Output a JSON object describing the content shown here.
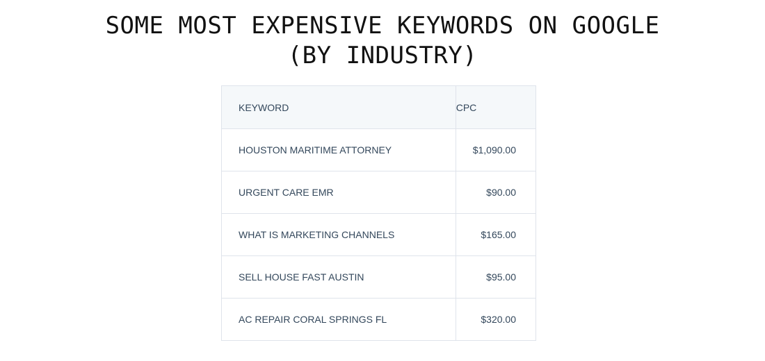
{
  "header": {
    "title": [
      "SOME MOST EXPENSIVE KEYWORDS ON GOOGLE",
      "(BY INDUSTRY)"
    ]
  },
  "table": {
    "columns": [
      "KEYWORD",
      "CPC"
    ],
    "rows": [
      [
        "HOUSTON MARITIME ATTORNEY",
        "$1,090.00"
      ],
      [
        "URGENT CARE EMR",
        "$90.00"
      ],
      [
        "WHAT IS MARKETING CHANNELS",
        "$165.00"
      ],
      [
        "SELL HOUSE FAST AUSTIN",
        "$95.00"
      ],
      [
        "AC REPAIR CORAL SPRINGS FL",
        "$320.00"
      ]
    ]
  }
}
